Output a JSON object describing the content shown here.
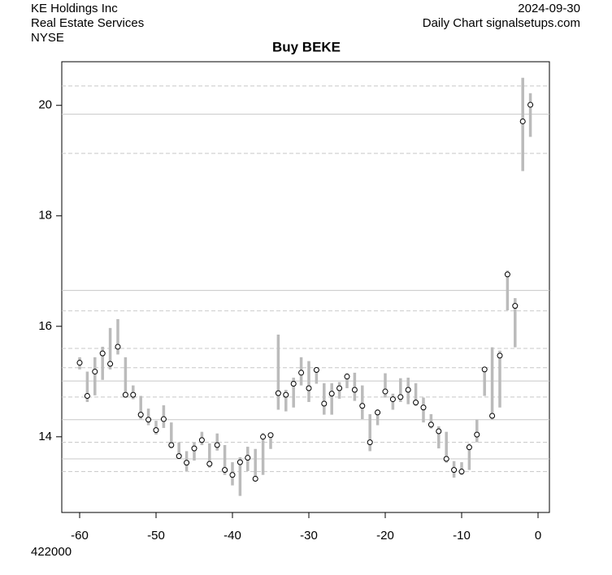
{
  "header": {
    "company": "KE Holdings Inc",
    "sector": "Real Estate Services",
    "exchange": "NYSE",
    "date": "2024-09-30",
    "source": "Daily Chart signalsetups.com",
    "footer": "422000"
  },
  "chart_data": {
    "type": "hilo",
    "title": "Buy BEKE",
    "x": [
      -60,
      -59,
      -58,
      -57,
      -56,
      -55,
      -54,
      -53,
      -52,
      -51,
      -50,
      -49,
      -48,
      -47,
      -46,
      -45,
      -44,
      -43,
      -42,
      -41,
      -40,
      -39,
      -38,
      -37,
      -36,
      -35,
      -34,
      -33,
      -32,
      -31,
      -30,
      -29,
      -28,
      -27,
      -26,
      -25,
      -24,
      -23,
      -22,
      -21,
      -20,
      -19,
      -18,
      -17,
      -16,
      -15,
      -14,
      -13,
      -12,
      -11,
      -10,
      -9,
      -8,
      -7,
      -6,
      -5,
      -4,
      -3,
      -2,
      -1
    ],
    "high": [
      15.44,
      15.18,
      15.44,
      15.63,
      15.97,
      16.13,
      15.44,
      14.93,
      14.74,
      14.51,
      14.29,
      14.57,
      14.26,
      13.9,
      13.74,
      13.9,
      14.09,
      13.88,
      14.06,
      13.85,
      13.54,
      13.63,
      13.82,
      13.78,
      14.07,
      14.07,
      15.85,
      14.85,
      15.07,
      15.44,
      15.37,
      15.26,
      14.97,
      14.97,
      14.99,
      15.15,
      15.16,
      14.93,
      14.41,
      14.5,
      15.15,
      14.78,
      15.06,
      15.07,
      14.97,
      14.71,
      14.41,
      14.19,
      14.09,
      13.56,
      13.54,
      13.88,
      14.31,
      15.26,
      15.62,
      15.56,
      17.01,
      16.51,
      20.5,
      20.22
    ],
    "low": [
      15.22,
      14.63,
      14.75,
      15.03,
      15.22,
      15.49,
      14.71,
      14.68,
      14.32,
      14.21,
      14.04,
      14.16,
      13.79,
      13.6,
      13.38,
      13.57,
      13.85,
      13.44,
      13.75,
      13.31,
      13.12,
      12.93,
      13.38,
      13.21,
      13.31,
      13.78,
      14.49,
      14.46,
      14.53,
      14.93,
      14.63,
      14.96,
      14.4,
      14.4,
      14.69,
      14.88,
      14.65,
      14.32,
      13.74,
      14.21,
      14.71,
      14.49,
      14.63,
      14.59,
      14.56,
      14.26,
      14.15,
      13.79,
      13.53,
      13.26,
      13.31,
      13.4,
      13.9,
      14.74,
      14.31,
      14.53,
      16.29,
      15.62,
      18.81,
      19.43
    ],
    "close": [
      15.34,
      14.74,
      15.18,
      15.51,
      15.32,
      15.63,
      14.76,
      14.76,
      14.4,
      14.31,
      14.12,
      14.32,
      13.85,
      13.65,
      13.53,
      13.79,
      13.94,
      13.51,
      13.85,
      13.4,
      13.31,
      13.54,
      13.62,
      13.24,
      14.0,
      14.03,
      14.79,
      14.76,
      14.96,
      15.16,
      14.88,
      15.21,
      14.6,
      14.78,
      14.88,
      15.09,
      14.85,
      14.56,
      13.9,
      14.44,
      14.82,
      14.68,
      14.72,
      14.85,
      14.62,
      14.53,
      14.22,
      14.1,
      13.6,
      13.4,
      13.37,
      13.81,
      14.04,
      15.22,
      14.38,
      15.47,
      16.94,
      16.37,
      19.71,
      20.01
    ],
    "bar_color": "#bbbbbb",
    "point_color": "#000000",
    "solid_lines": [
      19.84,
      16.65,
      15.01,
      14.31,
      13.6
    ],
    "dashed_lines": [
      20.35,
      19.13,
      16.28,
      15.6,
      15.25,
      14.72,
      13.9,
      13.37
    ],
    "xlim": [
      -62.34,
      1.49
    ],
    "ylim": [
      12.63,
      20.79
    ],
    "xticks": [
      -60,
      -50,
      -40,
      -30,
      -20,
      -10,
      0
    ],
    "yticks": [
      14,
      16,
      18,
      20
    ]
  }
}
